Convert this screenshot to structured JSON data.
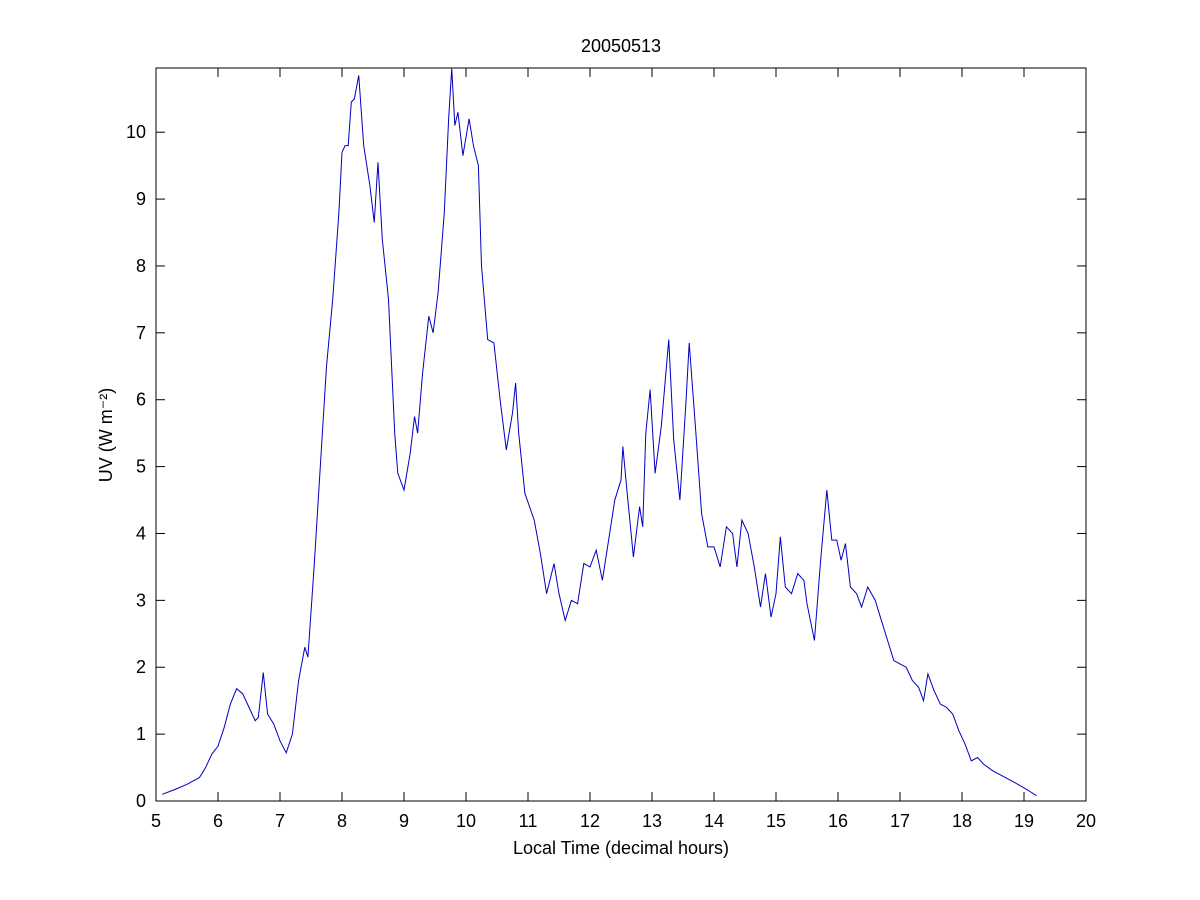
{
  "chart_data": {
    "type": "line",
    "title": "20050513",
    "xlabel": "Local Time (decimal hours)",
    "ylabel": "UV (W m⁻²)",
    "x": [
      5.1,
      5.3,
      5.5,
      5.7,
      5.8,
      5.9,
      6.0,
      6.1,
      6.2,
      6.3,
      6.4,
      6.5,
      6.6,
      6.65,
      6.73,
      6.8,
      6.9,
      7.0,
      7.1,
      7.2,
      7.3,
      7.4,
      7.45,
      7.55,
      7.65,
      7.75,
      7.85,
      7.95,
      8.0,
      8.05,
      8.1,
      8.15,
      8.2,
      8.27,
      8.35,
      8.45,
      8.52,
      8.58,
      8.65,
      8.75,
      8.85,
      8.9,
      9.0,
      9.1,
      9.17,
      9.22,
      9.3,
      9.4,
      9.47,
      9.55,
      9.65,
      9.72,
      9.77,
      9.82,
      9.87,
      9.95,
      10.05,
      10.12,
      10.2,
      10.25,
      10.35,
      10.45,
      10.55,
      10.65,
      10.75,
      10.8,
      10.85,
      10.95,
      11.1,
      11.2,
      11.3,
      11.42,
      11.5,
      11.6,
      11.7,
      11.8,
      11.9,
      12.0,
      12.1,
      12.2,
      12.3,
      12.4,
      12.5,
      12.53,
      12.6,
      12.7,
      12.8,
      12.85,
      12.9,
      12.97,
      13.05,
      13.15,
      13.27,
      13.35,
      13.45,
      13.55,
      13.6,
      13.7,
      13.8,
      13.9,
      14.0,
      14.1,
      14.2,
      14.3,
      14.37,
      14.45,
      14.55,
      14.65,
      14.75,
      14.83,
      14.92,
      15.0,
      15.07,
      15.15,
      15.25,
      15.35,
      15.45,
      15.5,
      15.62,
      15.72,
      15.82,
      15.9,
      15.98,
      16.05,
      16.12,
      16.2,
      16.3,
      16.38,
      16.48,
      16.6,
      16.7,
      16.8,
      16.9,
      17.0,
      17.1,
      17.2,
      17.3,
      17.38,
      17.45,
      17.55,
      17.65,
      17.75,
      17.85,
      17.95,
      18.05,
      18.15,
      18.25,
      18.35,
      18.5,
      18.7,
      18.9,
      19.05,
      19.2
    ],
    "series": [
      {
        "name": "UV",
        "color": "#0000c0",
        "values": [
          0.1,
          0.17,
          0.25,
          0.35,
          0.5,
          0.7,
          0.82,
          1.1,
          1.45,
          1.68,
          1.6,
          1.4,
          1.2,
          1.25,
          1.92,
          1.3,
          1.15,
          0.9,
          0.72,
          1.0,
          1.8,
          2.3,
          2.15,
          3.5,
          5.0,
          6.5,
          7.5,
          8.8,
          9.7,
          9.8,
          9.8,
          10.45,
          10.5,
          10.85,
          9.8,
          9.2,
          8.65,
          9.55,
          8.4,
          7.5,
          5.5,
          4.9,
          4.65,
          5.2,
          5.75,
          5.5,
          6.4,
          7.25,
          7.0,
          7.6,
          8.8,
          10.2,
          10.95,
          10.1,
          10.3,
          9.65,
          10.2,
          9.8,
          9.5,
          8.0,
          6.9,
          6.85,
          6.0,
          5.25,
          5.8,
          6.25,
          5.5,
          4.6,
          4.2,
          3.7,
          3.1,
          3.55,
          3.1,
          2.7,
          3.0,
          2.95,
          3.55,
          3.5,
          3.75,
          3.3,
          3.9,
          4.5,
          4.8,
          5.3,
          4.6,
          3.65,
          4.4,
          4.1,
          5.5,
          6.15,
          4.9,
          5.6,
          6.9,
          5.4,
          4.5,
          6.0,
          6.85,
          5.6,
          4.3,
          3.8,
          3.8,
          3.5,
          4.1,
          4.0,
          3.5,
          4.2,
          4.0,
          3.5,
          2.9,
          3.4,
          2.75,
          3.1,
          3.95,
          3.2,
          3.1,
          3.4,
          3.3,
          2.95,
          2.4,
          3.6,
          4.65,
          3.9,
          3.9,
          3.6,
          3.85,
          3.2,
          3.1,
          2.9,
          3.2,
          3.0,
          2.7,
          2.4,
          2.1,
          2.05,
          2.0,
          1.8,
          1.7,
          1.5,
          1.9,
          1.65,
          1.45,
          1.4,
          1.3,
          1.05,
          0.85,
          0.6,
          0.65,
          0.55,
          0.45,
          0.35,
          0.25,
          0.17,
          0.08
        ]
      }
    ],
    "xlim": [
      5,
      20
    ],
    "ylim": [
      0,
      10.96
    ],
    "xticks": [
      5,
      6,
      7,
      8,
      9,
      10,
      11,
      12,
      13,
      14,
      15,
      16,
      17,
      18,
      19,
      20
    ],
    "yticks": [
      0,
      1,
      2,
      3,
      4,
      5,
      6,
      7,
      8,
      9,
      10
    ]
  }
}
